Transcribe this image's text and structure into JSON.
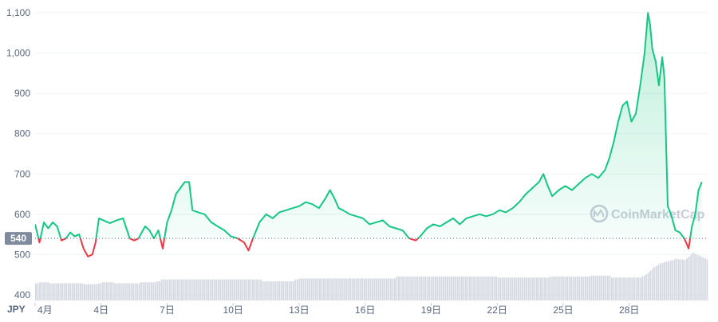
{
  "chart_data": {
    "type": "line",
    "title": "",
    "currency": "JPY",
    "ylim": [
      380,
      1120
    ],
    "y_ticks": [
      400,
      500,
      600,
      700,
      800,
      900,
      1000,
      1100
    ],
    "y_tick_labels": [
      "400",
      "500",
      "600",
      "700",
      "800",
      "900",
      "1,000",
      "1,100"
    ],
    "x_ticks": [
      {
        "day": 1,
        "label": "4月"
      },
      {
        "day": 4,
        "label": "4日"
      },
      {
        "day": 7,
        "label": "7日"
      },
      {
        "day": 10,
        "label": "10日"
      },
      {
        "day": 13,
        "label": "13日"
      },
      {
        "day": 16,
        "label": "16日"
      },
      {
        "day": 19,
        "label": "19日"
      },
      {
        "day": 22,
        "label": "22日"
      },
      {
        "day": 25,
        "label": "25日"
      },
      {
        "day": 28,
        "label": "28日"
      }
    ],
    "xlim": [
      1,
      31.6
    ],
    "reference_price": 540,
    "reference_label": "540",
    "watermark": "CoinMarketCap",
    "colors": {
      "up": "#16c784",
      "down": "#ea3943",
      "volume": "#d5d9e1",
      "grid": "#eff2f5",
      "badge": "#808a9d"
    },
    "series": [
      {
        "points": [
          [
            1.0,
            575
          ],
          [
            1.2,
            530
          ],
          [
            1.4,
            580
          ],
          [
            1.6,
            565
          ],
          [
            1.8,
            580
          ],
          [
            2.0,
            570
          ],
          [
            2.2,
            535
          ],
          [
            2.4,
            540
          ],
          [
            2.6,
            555
          ],
          [
            2.8,
            545
          ],
          [
            3.0,
            550
          ],
          [
            3.2,
            515
          ],
          [
            3.4,
            495
          ],
          [
            3.6,
            500
          ],
          [
            3.75,
            530
          ],
          [
            3.9,
            590
          ],
          [
            4.1,
            585
          ],
          [
            4.4,
            578
          ],
          [
            4.7,
            585
          ],
          [
            5.0,
            590
          ],
          [
            5.3,
            540
          ],
          [
            5.5,
            535
          ],
          [
            5.7,
            540
          ],
          [
            6.0,
            570
          ],
          [
            6.2,
            560
          ],
          [
            6.4,
            540
          ],
          [
            6.6,
            560
          ],
          [
            6.8,
            515
          ],
          [
            7.0,
            580
          ],
          [
            7.2,
            610
          ],
          [
            7.4,
            650
          ],
          [
            7.6,
            665
          ],
          [
            7.8,
            680
          ],
          [
            8.0,
            680
          ],
          [
            8.15,
            610
          ],
          [
            8.4,
            605
          ],
          [
            8.7,
            600
          ],
          [
            9.0,
            580
          ],
          [
            9.3,
            570
          ],
          [
            9.6,
            560
          ],
          [
            9.9,
            545
          ],
          [
            10.2,
            540
          ],
          [
            10.5,
            530
          ],
          [
            10.7,
            510
          ],
          [
            10.9,
            540
          ],
          [
            11.2,
            580
          ],
          [
            11.5,
            600
          ],
          [
            11.8,
            590
          ],
          [
            12.1,
            605
          ],
          [
            12.4,
            610
          ],
          [
            12.7,
            615
          ],
          [
            13.0,
            620
          ],
          [
            13.3,
            630
          ],
          [
            13.6,
            625
          ],
          [
            13.9,
            615
          ],
          [
            14.2,
            640
          ],
          [
            14.4,
            660
          ],
          [
            14.6,
            640
          ],
          [
            14.8,
            615
          ],
          [
            15.0,
            610
          ],
          [
            15.3,
            600
          ],
          [
            15.6,
            595
          ],
          [
            15.9,
            590
          ],
          [
            16.2,
            575
          ],
          [
            16.5,
            580
          ],
          [
            16.8,
            585
          ],
          [
            17.1,
            570
          ],
          [
            17.4,
            565
          ],
          [
            17.7,
            560
          ],
          [
            18.0,
            540
          ],
          [
            18.3,
            535
          ],
          [
            18.5,
            545
          ],
          [
            18.8,
            565
          ],
          [
            19.1,
            575
          ],
          [
            19.4,
            570
          ],
          [
            19.7,
            580
          ],
          [
            20.0,
            590
          ],
          [
            20.3,
            575
          ],
          [
            20.6,
            590
          ],
          [
            20.9,
            595
          ],
          [
            21.2,
            600
          ],
          [
            21.5,
            595
          ],
          [
            21.8,
            600
          ],
          [
            22.1,
            610
          ],
          [
            22.4,
            605
          ],
          [
            22.7,
            615
          ],
          [
            23.0,
            630
          ],
          [
            23.3,
            650
          ],
          [
            23.6,
            665
          ],
          [
            23.9,
            680
          ],
          [
            24.1,
            700
          ],
          [
            24.3,
            670
          ],
          [
            24.5,
            645
          ],
          [
            24.8,
            660
          ],
          [
            25.1,
            670
          ],
          [
            25.4,
            660
          ],
          [
            25.7,
            675
          ],
          [
            26.0,
            690
          ],
          [
            26.3,
            700
          ],
          [
            26.6,
            690
          ],
          [
            26.9,
            710
          ],
          [
            27.1,
            740
          ],
          [
            27.3,
            780
          ],
          [
            27.5,
            830
          ],
          [
            27.7,
            870
          ],
          [
            27.9,
            880
          ],
          [
            28.1,
            830
          ],
          [
            28.3,
            850
          ],
          [
            28.5,
            920
          ],
          [
            28.7,
            1000
          ],
          [
            28.85,
            1100
          ],
          [
            28.95,
            1070
          ],
          [
            29.05,
            1010
          ],
          [
            29.2,
            980
          ],
          [
            29.35,
            920
          ],
          [
            29.5,
            990
          ],
          [
            29.6,
            940
          ],
          [
            29.75,
            620
          ],
          [
            29.9,
            600
          ],
          [
            30.1,
            560
          ],
          [
            30.3,
            555
          ],
          [
            30.5,
            540
          ],
          [
            30.7,
            515
          ],
          [
            30.85,
            570
          ],
          [
            31.0,
            600
          ],
          [
            31.15,
            660
          ],
          [
            31.3,
            680
          ]
        ]
      }
    ],
    "volume": [
      36,
      36,
      38,
      38,
      38,
      38,
      38,
      36,
      36,
      36,
      36,
      36,
      36,
      36,
      36,
      36,
      36,
      36,
      36,
      36,
      36,
      36,
      36,
      36,
      34,
      34,
      34,
      34,
      34,
      34,
      34,
      36,
      36,
      38,
      38,
      38,
      38,
      38,
      38,
      36,
      36,
      36,
      36,
      36,
      36,
      36,
      36,
      36,
      36,
      36,
      36,
      36,
      38,
      38,
      38,
      38,
      38,
      38,
      38,
      38,
      40,
      40,
      44,
      44,
      44,
      44,
      44,
      44,
      44,
      44,
      44,
      44,
      44,
      44,
      44,
      44,
      44,
      44,
      44,
      44,
      44,
      44,
      44,
      44,
      44,
      44,
      44,
      44,
      44,
      44,
      44,
      44,
      44,
      44,
      44,
      44,
      44,
      44,
      44,
      44,
      44,
      44,
      44,
      44,
      44,
      44,
      44,
      44,
      44,
      44,
      44,
      44,
      40,
      40,
      40,
      40,
      40,
      40,
      40,
      40,
      40,
      40,
      40,
      40,
      40,
      40,
      40,
      40,
      44,
      44,
      46,
      46,
      46,
      46,
      46,
      46,
      46,
      46,
      46,
      46,
      46,
      46,
      46,
      46,
      46,
      46,
      46,
      46,
      46,
      46,
      46,
      46,
      46,
      46,
      46,
      46,
      46,
      46,
      46,
      46,
      46,
      46,
      46,
      46,
      46,
      46,
      46,
      46,
      46,
      46,
      46,
      46,
      46,
      46,
      46,
      46,
      46,
      46,
      50,
      50,
      50,
      50,
      50,
      50,
      50,
      50,
      50,
      50,
      50,
      50,
      50,
      50,
      50,
      50,
      50,
      50,
      50,
      50,
      50,
      50,
      50,
      50,
      50,
      50,
      50,
      50,
      50,
      50,
      50,
      50,
      50,
      50,
      50,
      50,
      50,
      50,
      50,
      50,
      50,
      50,
      50,
      50,
      50,
      50,
      50,
      50,
      50,
      50,
      48,
      48,
      48,
      48,
      48,
      48,
      48,
      48,
      48,
      48,
      48,
      48,
      48,
      48,
      48,
      48,
      48,
      48,
      48,
      48,
      48,
      48,
      48,
      48,
      48,
      48,
      50,
      50,
      50,
      50,
      50,
      50,
      50,
      50,
      50,
      50,
      50,
      50,
      50,
      50,
      50,
      50,
      50,
      50,
      50,
      50,
      52,
      52,
      52,
      52,
      52,
      52,
      52,
      52,
      52,
      52,
      48,
      48,
      48,
      48,
      48,
      48,
      48,
      48,
      48,
      48,
      48,
      48,
      48,
      48,
      48,
      50,
      52,
      55,
      58,
      62,
      66,
      70,
      72,
      75,
      78,
      78,
      80,
      82,
      82,
      84,
      84,
      86,
      88,
      86,
      86,
      86,
      84,
      88,
      92,
      96,
      100,
      98,
      96,
      94,
      92,
      90,
      88,
      86
    ]
  }
}
